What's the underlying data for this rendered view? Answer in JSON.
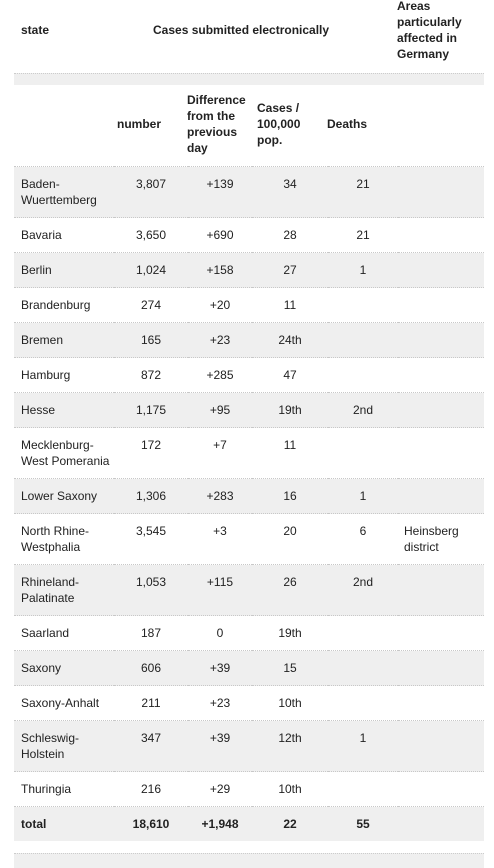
{
  "header": {
    "state": "state",
    "cases_submitted": "Cases submitted electronically",
    "areas": "Areas particularly affected in Germany",
    "number": "number",
    "difference": "Difference from the previous day",
    "per_100k": "Cases / 100,000 pop.",
    "deaths": "Deaths"
  },
  "rows": [
    {
      "state": "Baden-Wuerttemberg",
      "number": "3,807",
      "diff": "+139",
      "per100k": "34",
      "deaths": "21",
      "area": ""
    },
    {
      "state": "Bavaria",
      "number": "3,650",
      "diff": "+690",
      "per100k": "28",
      "deaths": "21",
      "area": ""
    },
    {
      "state": "Berlin",
      "number": "1,024",
      "diff": "+158",
      "per100k": "27",
      "deaths": "1",
      "area": ""
    },
    {
      "state": "Brandenburg",
      "number": "274",
      "diff": "+20",
      "per100k": "11",
      "deaths": "",
      "area": ""
    },
    {
      "state": "Bremen",
      "number": "165",
      "diff": "+23",
      "per100k": "24th",
      "deaths": "",
      "area": ""
    },
    {
      "state": "Hamburg",
      "number": "872",
      "diff": "+285",
      "per100k": "47",
      "deaths": "",
      "area": ""
    },
    {
      "state": "Hesse",
      "number": "1,175",
      "diff": "+95",
      "per100k": "19th",
      "deaths": "2nd",
      "area": ""
    },
    {
      "state": "Mecklenburg-West Pomerania",
      "number": "172",
      "diff": "+7",
      "per100k": "11",
      "deaths": "",
      "area": ""
    },
    {
      "state": "Lower Saxony",
      "number": "1,306",
      "diff": "+283",
      "per100k": "16",
      "deaths": "1",
      "area": ""
    },
    {
      "state": "North Rhine-Westphalia",
      "number": "3,545",
      "diff": "+3",
      "per100k": "20",
      "deaths": "6",
      "area": "Heinsberg district"
    },
    {
      "state": "Rhineland-Palatinate",
      "number": "1,053",
      "diff": "+115",
      "per100k": "26",
      "deaths": "2nd",
      "area": ""
    },
    {
      "state": "Saarland",
      "number": "187",
      "diff": "0",
      "per100k": "19th",
      "deaths": "",
      "area": ""
    },
    {
      "state": "Saxony",
      "number": "606",
      "diff": "+39",
      "per100k": "15",
      "deaths": "",
      "area": ""
    },
    {
      "state": "Saxony-Anhalt",
      "number": "211",
      "diff": "+23",
      "per100k": "10th",
      "deaths": "",
      "area": ""
    },
    {
      "state": "Schleswig-Holstein",
      "number": "347",
      "diff": "+39",
      "per100k": "12th",
      "deaths": "1",
      "area": ""
    },
    {
      "state": "Thuringia",
      "number": "216",
      "diff": "+29",
      "per100k": "10th",
      "deaths": "",
      "area": ""
    }
  ],
  "total": {
    "state": "total",
    "number": "18,610",
    "diff": "+1,948",
    "per100k": "22",
    "deaths": "55",
    "area": ""
  }
}
